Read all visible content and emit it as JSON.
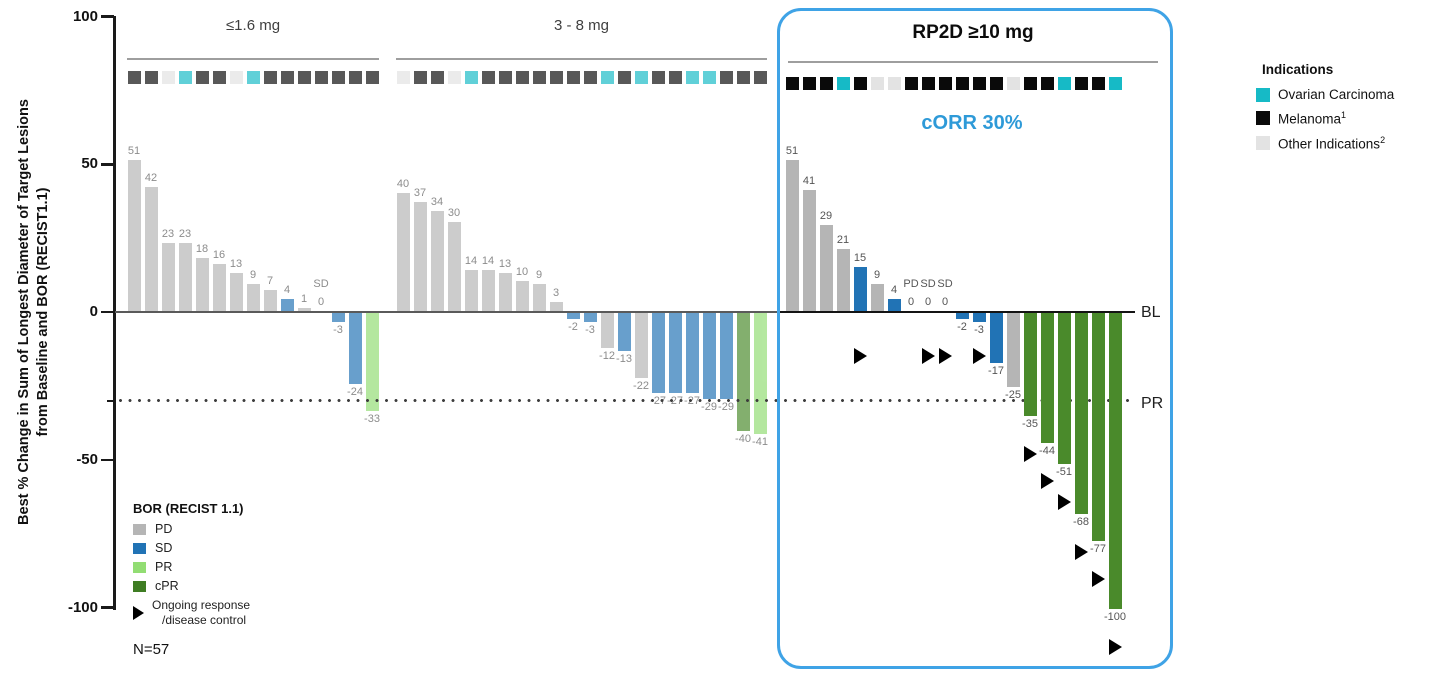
{
  "n_label": "N=57",
  "y_axis": {
    "title_line1": "Best % Change in Sum of Longest Diameter of Target Lesions",
    "title_line2": "from Baseline and BOR (RECIST1.1)",
    "ticks": [
      {
        "v": 100,
        "label": "100"
      },
      {
        "v": 50,
        "label": "50"
      },
      {
        "v": 0,
        "label": "0"
      },
      {
        "v": -50,
        "label": "-50"
      },
      {
        "v": -100,
        "label": "-100"
      }
    ],
    "minor_ticks": [
      -30
    ]
  },
  "reference_lines": {
    "baseline_label": "BL",
    "pr_label": "PR",
    "pr_value": -30
  },
  "colors": {
    "pd": "#b5b5b5",
    "sd": "#2173b5",
    "pr": "#92dd73",
    "cpr": "#4a8a2b",
    "cpr_legend": "#3f7d23",
    "ovarian": "#16bac6",
    "melanoma": "#0a0a0a",
    "other": "#e3e3e3",
    "box_border": "#3fa3e6",
    "corr_text": "#2e9ad8",
    "marker": "#000000"
  },
  "legend_bor": {
    "title": "BOR (RECIST 1.1)",
    "items": [
      {
        "label": "PD",
        "color_key": "pd"
      },
      {
        "label": "SD",
        "color_key": "sd"
      },
      {
        "label": "PR",
        "color_key": "pr"
      },
      {
        "label": "cPR",
        "color_key": "cpr_legend"
      }
    ],
    "ongoing_line1": "Ongoing response",
    "ongoing_line2": "/disease control"
  },
  "legend_indications": {
    "title": "Indications",
    "items": [
      {
        "label": "Ovarian Carcinoma",
        "sup": "",
        "color_key": "ovarian"
      },
      {
        "label": "Melanoma",
        "sup": "1",
        "color_key": "melanoma"
      },
      {
        "label": "Other Indications",
        "sup": "2",
        "color_key": "other"
      }
    ]
  },
  "chart_data": {
    "type": "bar",
    "subtype": "waterfall",
    "title": "",
    "ylabel": "Best % Change in Sum of Longest Diameter of Target Lesions from Baseline and BOR (RECIST1.1)",
    "ylim": [
      -100,
      100
    ],
    "grid": false,
    "pr_threshold": -30,
    "n_total": 57,
    "groups": [
      {
        "label": "≤1.6 mg",
        "muted": true,
        "bars": [
          {
            "v": 51,
            "bor": "PD",
            "ind": "m"
          },
          {
            "v": 42,
            "bor": "PD",
            "ind": "m"
          },
          {
            "v": 23,
            "bor": "PD",
            "ind": "x"
          },
          {
            "v": 23,
            "bor": "PD",
            "ind": "o"
          },
          {
            "v": 18,
            "bor": "PD",
            "ind": "m"
          },
          {
            "v": 16,
            "bor": "PD",
            "ind": "m"
          },
          {
            "v": 13,
            "bor": "PD",
            "ind": "x"
          },
          {
            "v": 9,
            "bor": "PD",
            "ind": "o"
          },
          {
            "v": 7,
            "bor": "PD",
            "ind": "m"
          },
          {
            "v": 4,
            "bor": "SD",
            "ind": "m"
          },
          {
            "v": 1,
            "bor": "PD",
            "ind": "m"
          },
          {
            "v": 0,
            "bor": "SD",
            "ind": "m",
            "ann": "SD"
          },
          {
            "v": -3,
            "bor": "SD",
            "ind": "m"
          },
          {
            "v": -24,
            "bor": "SD",
            "ind": "m"
          },
          {
            "v": -33,
            "bor": "PR",
            "ind": "m"
          }
        ]
      },
      {
        "label": "3 - 8 mg",
        "muted": true,
        "bars": [
          {
            "v": 40,
            "bor": "PD",
            "ind": "x"
          },
          {
            "v": 37,
            "bor": "PD",
            "ind": "m"
          },
          {
            "v": 34,
            "bor": "PD",
            "ind": "m"
          },
          {
            "v": 30,
            "bor": "PD",
            "ind": "x"
          },
          {
            "v": 14,
            "bor": "PD",
            "ind": "o"
          },
          {
            "v": 14,
            "bor": "PD",
            "ind": "m"
          },
          {
            "v": 13,
            "bor": "PD",
            "ind": "m"
          },
          {
            "v": 10,
            "bor": "PD",
            "ind": "m"
          },
          {
            "v": 9,
            "bor": "PD",
            "ind": "m"
          },
          {
            "v": 3,
            "bor": "PD",
            "ind": "m"
          },
          {
            "v": -2,
            "bor": "SD",
            "ind": "m"
          },
          {
            "v": -3,
            "bor": "SD",
            "ind": "m"
          },
          {
            "v": -12,
            "bor": "PD",
            "ind": "o"
          },
          {
            "v": -13,
            "bor": "SD",
            "ind": "m"
          },
          {
            "v": -22,
            "bor": "PD",
            "ind": "o"
          },
          {
            "v": -27,
            "bor": "SD",
            "ind": "m"
          },
          {
            "v": -27,
            "bor": "SD",
            "ind": "m"
          },
          {
            "v": -27,
            "bor": "SD",
            "ind": "o"
          },
          {
            "v": -29,
            "bor": "SD",
            "ind": "o"
          },
          {
            "v": -29,
            "bor": "SD",
            "ind": "m"
          },
          {
            "v": -40,
            "bor": "cPR",
            "ind": "m"
          },
          {
            "v": -41,
            "bor": "PR",
            "ind": "m"
          }
        ]
      },
      {
        "label": "RP2D ≥10 mg",
        "muted": false,
        "highlight": true,
        "corr_label": "cORR 30%",
        "bars": [
          {
            "v": 51,
            "bor": "PD",
            "ind": "m"
          },
          {
            "v": 41,
            "bor": "PD",
            "ind": "m"
          },
          {
            "v": 29,
            "bor": "PD",
            "ind": "m"
          },
          {
            "v": 21,
            "bor": "PD",
            "ind": "o"
          },
          {
            "v": 15,
            "bor": "SD",
            "ind": "m",
            "ongoing": "row"
          },
          {
            "v": 9,
            "bor": "PD",
            "ind": "x"
          },
          {
            "v": 4,
            "bor": "SD",
            "ind": "x"
          },
          {
            "v": 0,
            "bor": "PD",
            "ind": "m",
            "ann": "PD"
          },
          {
            "v": 0,
            "bor": "SD",
            "ind": "m",
            "ann": "SD",
            "ongoing": "row"
          },
          {
            "v": 0,
            "bor": "SD",
            "ind": "m",
            "ann": "SD",
            "ongoing": "row"
          },
          {
            "v": -2,
            "bor": "SD",
            "ind": "m"
          },
          {
            "v": -3,
            "bor": "SD",
            "ind": "m",
            "ongoing": "row"
          },
          {
            "v": -17,
            "bor": "SD",
            "ind": "m"
          },
          {
            "v": -25,
            "bor": "PD",
            "ind": "x"
          },
          {
            "v": -35,
            "bor": "cPR",
            "ind": "m",
            "ongoing": "below"
          },
          {
            "v": -44,
            "bor": "cPR",
            "ind": "m",
            "ongoing": "below"
          },
          {
            "v": -51,
            "bor": "cPR",
            "ind": "o",
            "ongoing": "below"
          },
          {
            "v": -68,
            "bor": "cPR",
            "ind": "m",
            "ongoing": "below"
          },
          {
            "v": -77,
            "bor": "cPR",
            "ind": "m",
            "ongoing": "below"
          },
          {
            "v": -100,
            "bor": "cPR",
            "ind": "o",
            "ongoing": "below"
          }
        ]
      }
    ]
  }
}
